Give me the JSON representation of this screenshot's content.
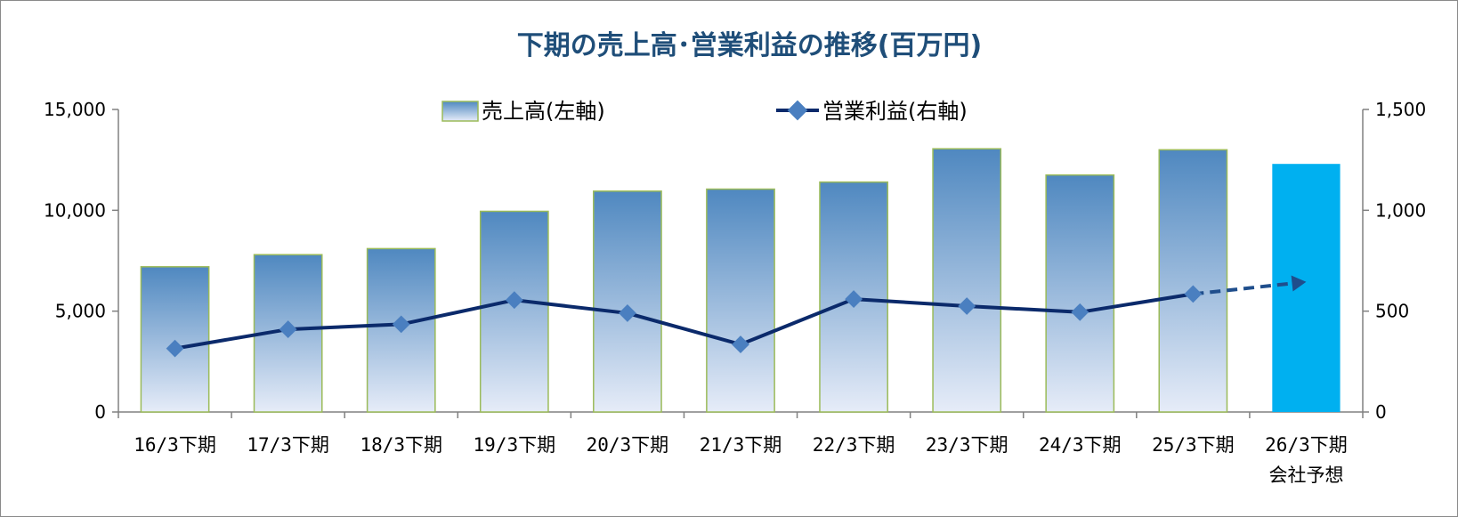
{
  "chart_data": {
    "type": "bar+line",
    "title": "下期の売上高･営業利益の推移(百万円)",
    "categories": [
      [
        "16/3下期"
      ],
      [
        "17/3下期"
      ],
      [
        "18/3下期"
      ],
      [
        "19/3下期"
      ],
      [
        "20/3下期"
      ],
      [
        "21/3下期"
      ],
      [
        "22/3下期"
      ],
      [
        "23/3下期"
      ],
      [
        "24/3下期"
      ],
      [
        "25/3下期"
      ],
      [
        "26/3下期",
        "会社予想"
      ]
    ],
    "series": [
      {
        "name": "売上高(左軸)",
        "type": "bar",
        "axis": "left",
        "values": [
          7200,
          7800,
          8100,
          9950,
          10950,
          11050,
          11400,
          13050,
          11750,
          13000,
          12300
        ],
        "forecast_index": 10
      },
      {
        "name": "営業利益(右軸)",
        "type": "line",
        "axis": "right",
        "values": [
          315,
          410,
          435,
          555,
          490,
          335,
          560,
          525,
          495,
          585,
          645
        ],
        "forecast_index": 10
      }
    ],
    "y_left": {
      "min": 0,
      "max": 15000,
      "ticks": [
        "0",
        "5,000",
        "10,000",
        "15,000"
      ]
    },
    "y_right": {
      "min": 0,
      "max": 1500,
      "ticks": [
        "0",
        "500",
        "1,000",
        "1,500"
      ]
    },
    "legend_position": "top-center",
    "grid": false,
    "colors": {
      "bar_top": "#4f88c0",
      "bar_bottom": "#e6ecf8",
      "bar_border": "#9bbb59",
      "forecast_bar": "#00b0f0",
      "line": "#0b2a6b",
      "marker": "#4a7fc0",
      "title": "#1f4e79"
    }
  }
}
